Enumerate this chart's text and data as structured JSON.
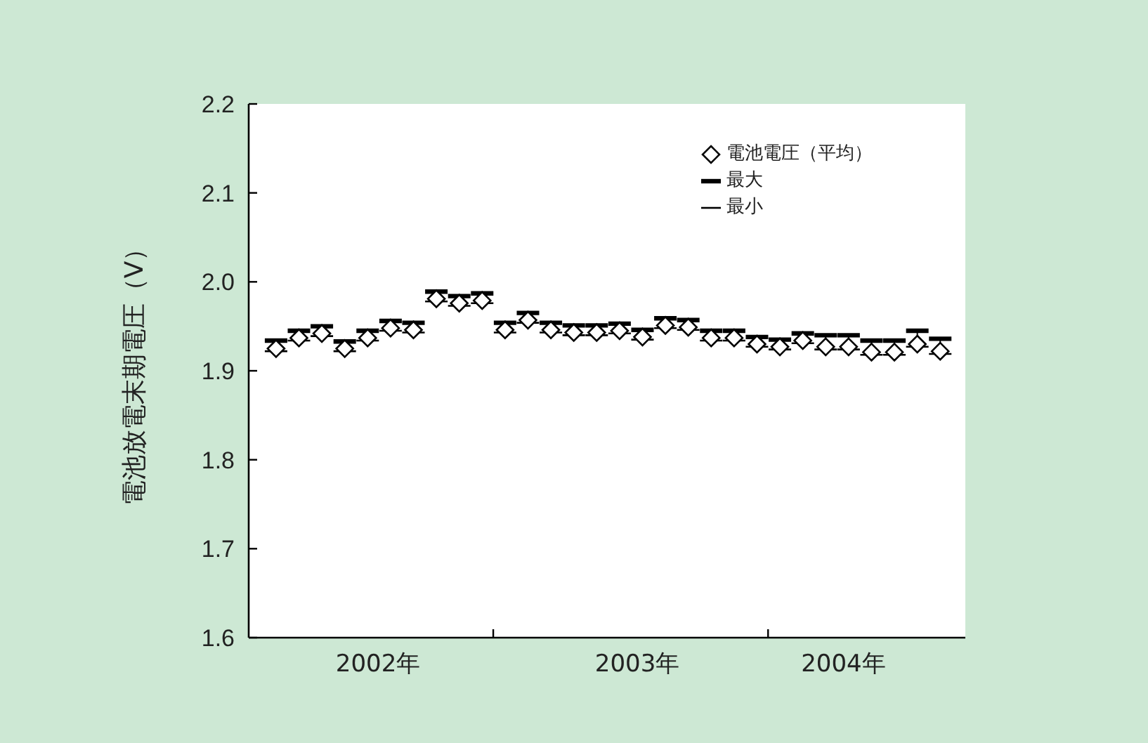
{
  "chart_data": {
    "type": "scatter",
    "ylabel": "電池放電末期電圧（V）",
    "x": [
      "2002-03",
      "2002-04",
      "2002-05",
      "2002-06",
      "2002-07",
      "2002-08",
      "2002-09",
      "2002-10",
      "2002-11",
      "2002-12",
      "2003-01",
      "2003-02",
      "2003-03",
      "2003-04",
      "2003-05",
      "2003-06",
      "2003-07",
      "2003-08",
      "2003-09",
      "2003-10",
      "2003-11",
      "2003-12",
      "2004-01",
      "2004-02",
      "2004-03",
      "2004-04",
      "2004-05",
      "2004-06",
      "2004-07",
      "2004-08"
    ],
    "series": [
      {
        "name": "電池電圧（平均）",
        "color": "#000000",
        "marker": "diamond",
        "values": [
          1.925,
          1.937,
          1.942,
          1.925,
          1.937,
          1.948,
          1.946,
          1.981,
          1.976,
          1.979,
          1.946,
          1.957,
          1.946,
          1.943,
          1.943,
          1.945,
          1.938,
          1.951,
          1.949,
          1.937,
          1.937,
          1.93,
          1.927,
          1.934,
          1.927,
          1.927,
          1.921,
          1.921,
          1.93,
          1.922
        ],
        "errors": [
          [
            1.922,
            1.934
          ],
          [
            1.934,
            1.945
          ],
          [
            1.939,
            1.95
          ],
          [
            1.922,
            1.933
          ],
          [
            1.934,
            1.945
          ],
          [
            1.945,
            1.956
          ],
          [
            1.943,
            1.954
          ],
          [
            1.978,
            1.989
          ],
          [
            1.973,
            1.984
          ],
          [
            1.976,
            1.987
          ],
          [
            1.943,
            1.954
          ],
          [
            1.954,
            1.965
          ],
          [
            1.943,
            1.954
          ],
          [
            1.94,
            1.951
          ],
          [
            1.94,
            1.951
          ],
          [
            1.942,
            1.953
          ],
          [
            1.935,
            1.946
          ],
          [
            1.948,
            1.959
          ],
          [
            1.946,
            1.957
          ],
          [
            1.934,
            1.945
          ],
          [
            1.934,
            1.945
          ],
          [
            1.927,
            1.938
          ],
          [
            1.924,
            1.935
          ],
          [
            1.931,
            1.942
          ],
          [
            1.924,
            1.94
          ],
          [
            1.924,
            1.94
          ],
          [
            1.918,
            1.934
          ],
          [
            1.918,
            1.934
          ],
          [
            1.927,
            1.945
          ],
          [
            1.919,
            1.936
          ]
        ]
      }
    ],
    "annotations": [
      "最大",
      "最小"
    ],
    "xlim": [
      "2002-01-26",
      "2004-09-04"
    ],
    "xticks": [
      {
        "value": "2002-07-15",
        "label": "2002年"
      },
      {
        "value": "2002-12-16",
        "label": null
      },
      {
        "value": "2003-06-25",
        "label": "2003年"
      },
      {
        "value": "2003-12-16",
        "label": null
      },
      {
        "value": "2004-03-25",
        "label": "2004年"
      }
    ],
    "ylim": [
      1.6,
      2.2
    ],
    "yticks": [
      1.6,
      1.7,
      1.8,
      1.9,
      {
        "value": 2,
        "label": "2.0"
      },
      2.1,
      2.2
    ],
    "legend": "top right"
  }
}
